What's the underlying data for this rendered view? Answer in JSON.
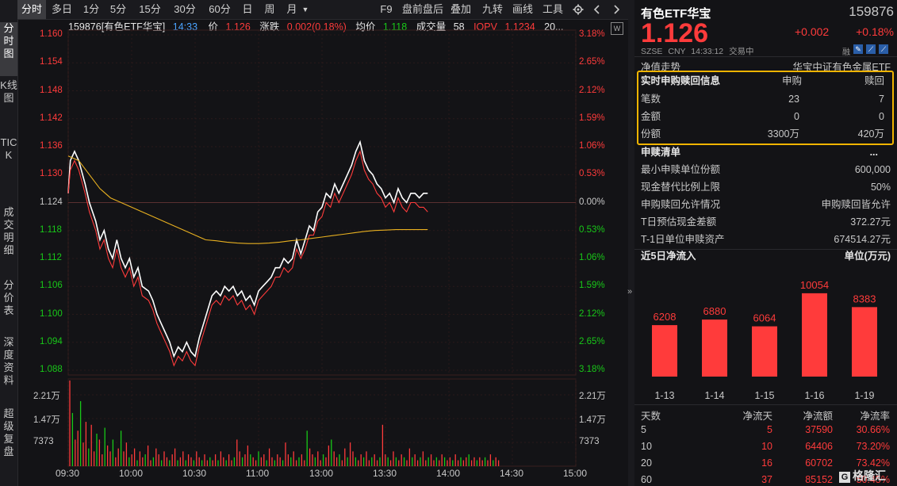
{
  "left_nav": [
    "分时图",
    "K线图",
    "TICK",
    "成交明细",
    "分价表",
    "深度资料",
    "超级复盘"
  ],
  "toolbar": {
    "periods": [
      "分时",
      "多日",
      "1分",
      "5分",
      "15分",
      "30分",
      "60分",
      "日",
      "周",
      "月"
    ],
    "month_arrow": "▼",
    "tools": [
      "F9",
      "盘前盘后",
      "叠加",
      "九转",
      "画线",
      "工具"
    ],
    "settings_icon": "gear-icon",
    "prev_icon": "chevron-left-icon",
    "next_icon": "chevron-right-icon"
  },
  "info_bar": {
    "code_name": "159876[有色ETF华宝]",
    "time": "14:33",
    "price_label": "价",
    "price": "1.126",
    "change_label": "涨跌",
    "change": "0.002(0.18%)",
    "avg_label": "均价",
    "avg": "1.118",
    "vol_label": "成交量",
    "vol": "58",
    "iopv_label": "IOPV",
    "iopv": "1.1234",
    "extra": "20..."
  },
  "chart_data": {
    "type": "line",
    "title": "",
    "price_axis": {
      "ticks": [
        "1.160",
        "1.154",
        "1.148",
        "1.142",
        "1.136",
        "1.130",
        "1.124",
        "1.118",
        "1.112",
        "1.106",
        "1.100",
        "1.094",
        "1.088"
      ],
      "pct_ticks": [
        "3.18%",
        "2.65%",
        "2.12%",
        "1.59%",
        "1.06%",
        "0.53%",
        "0.00%",
        "0.53%",
        "1.06%",
        "1.59%",
        "2.12%",
        "2.65%",
        "3.18%"
      ],
      "ylim": [
        1.088,
        1.16
      ],
      "prev_close": 1.124
    },
    "volume_axis": {
      "ticks": [
        "2.21万",
        "1.47万",
        "7373"
      ],
      "ylim": [
        0,
        29500
      ]
    },
    "x_ticks": [
      "09:30",
      "10:00",
      "10:30",
      "11:00",
      "13:00",
      "13:30",
      "14:00",
      "14:30",
      "15:00"
    ],
    "series": [
      {
        "color": "#ffffff",
        "values": [
          [
            0,
            1.126
          ],
          [
            1,
            1.133
          ],
          [
            3,
            1.135
          ],
          [
            5,
            1.133
          ],
          [
            8,
            1.128
          ],
          [
            10,
            1.124
          ],
          [
            13,
            1.12
          ],
          [
            15,
            1.116
          ],
          [
            17,
            1.118
          ],
          [
            19,
            1.114
          ],
          [
            21,
            1.112
          ],
          [
            23,
            1.116
          ],
          [
            25,
            1.112
          ],
          [
            27,
            1.11
          ],
          [
            29,
            1.112
          ],
          [
            31,
            1.108
          ],
          [
            33,
            1.11
          ],
          [
            35,
            1.106
          ],
          [
            38,
            1.105
          ],
          [
            40,
            1.103
          ],
          [
            42,
            1.1
          ],
          [
            44,
            1.098
          ],
          [
            46,
            1.096
          ],
          [
            48,
            1.094
          ],
          [
            50,
            1.091
          ],
          [
            52,
            1.093
          ],
          [
            54,
            1.092
          ],
          [
            56,
            1.094
          ],
          [
            58,
            1.092
          ],
          [
            60,
            1.091
          ],
          [
            62,
            1.095
          ],
          [
            64,
            1.098
          ],
          [
            66,
            1.101
          ],
          [
            68,
            1.104
          ],
          [
            70,
            1.105
          ],
          [
            72,
            1.104
          ],
          [
            74,
            1.106
          ],
          [
            76,
            1.105
          ],
          [
            78,
            1.106
          ],
          [
            80,
            1.104
          ],
          [
            82,
            1.105
          ],
          [
            84,
            1.103
          ],
          [
            86,
            1.104
          ],
          [
            88,
            1.102
          ],
          [
            90,
            1.105
          ],
          [
            92,
            1.106
          ],
          [
            94,
            1.107
          ],
          [
            96,
            1.108
          ],
          [
            98,
            1.11
          ],
          [
            100,
            1.11
          ],
          [
            102,
            1.112
          ],
          [
            104,
            1.111
          ],
          [
            106,
            1.112
          ],
          [
            108,
            1.116
          ],
          [
            110,
            1.113
          ],
          [
            112,
            1.116
          ],
          [
            114,
            1.119
          ],
          [
            116,
            1.118
          ],
          [
            118,
            1.122
          ],
          [
            120,
            1.123
          ],
          [
            122,
            1.126
          ],
          [
            124,
            1.125
          ],
          [
            126,
            1.128
          ],
          [
            128,
            1.126
          ],
          [
            130,
            1.128
          ],
          [
            132,
            1.13
          ],
          [
            134,
            1.132
          ],
          [
            136,
            1.135
          ],
          [
            138,
            1.137
          ],
          [
            140,
            1.133
          ],
          [
            142,
            1.131
          ],
          [
            144,
            1.13
          ],
          [
            146,
            1.128
          ],
          [
            148,
            1.127
          ],
          [
            150,
            1.125
          ],
          [
            152,
            1.126
          ],
          [
            154,
            1.124
          ],
          [
            156,
            1.127
          ],
          [
            158,
            1.125
          ],
          [
            160,
            1.124
          ],
          [
            162,
            1.126
          ],
          [
            164,
            1.126
          ],
          [
            166,
            1.125
          ],
          [
            168,
            1.126
          ],
          [
            170,
            1.126
          ]
        ]
      },
      {
        "color": "#ff3b3b",
        "values": [
          [
            0,
            1.126
          ],
          [
            1,
            1.131
          ],
          [
            3,
            1.133
          ],
          [
            5,
            1.131
          ],
          [
            8,
            1.126
          ],
          [
            10,
            1.122
          ],
          [
            13,
            1.118
          ],
          [
            15,
            1.114
          ],
          [
            17,
            1.116
          ],
          [
            19,
            1.112
          ],
          [
            21,
            1.11
          ],
          [
            23,
            1.114
          ],
          [
            25,
            1.11
          ],
          [
            27,
            1.108
          ],
          [
            29,
            1.11
          ],
          [
            31,
            1.106
          ],
          [
            33,
            1.108
          ],
          [
            35,
            1.104
          ],
          [
            38,
            1.103
          ],
          [
            40,
            1.101
          ],
          [
            42,
            1.098
          ],
          [
            44,
            1.096
          ],
          [
            46,
            1.094
          ],
          [
            48,
            1.092
          ],
          [
            50,
            1.089
          ],
          [
            52,
            1.091
          ],
          [
            54,
            1.09
          ],
          [
            56,
            1.092
          ],
          [
            58,
            1.09
          ],
          [
            60,
            1.089
          ],
          [
            62,
            1.093
          ],
          [
            64,
            1.096
          ],
          [
            66,
            1.099
          ],
          [
            68,
            1.102
          ],
          [
            70,
            1.103
          ],
          [
            72,
            1.102
          ],
          [
            74,
            1.104
          ],
          [
            76,
            1.103
          ],
          [
            78,
            1.104
          ],
          [
            80,
            1.102
          ],
          [
            82,
            1.103
          ],
          [
            84,
            1.101
          ],
          [
            86,
            1.102
          ],
          [
            88,
            1.1
          ],
          [
            90,
            1.103
          ],
          [
            92,
            1.104
          ],
          [
            94,
            1.105
          ],
          [
            96,
            1.106
          ],
          [
            98,
            1.108
          ],
          [
            100,
            1.108
          ],
          [
            102,
            1.11
          ],
          [
            104,
            1.109
          ],
          [
            106,
            1.11
          ],
          [
            108,
            1.114
          ],
          [
            110,
            1.112
          ],
          [
            112,
            1.114
          ],
          [
            114,
            1.117
          ],
          [
            116,
            1.117
          ],
          [
            118,
            1.12
          ],
          [
            120,
            1.121
          ],
          [
            122,
            1.124
          ],
          [
            124,
            1.123
          ],
          [
            126,
            1.126
          ],
          [
            128,
            1.124
          ],
          [
            130,
            1.126
          ],
          [
            132,
            1.128
          ],
          [
            134,
            1.13
          ],
          [
            136,
            1.133
          ],
          [
            138,
            1.135
          ],
          [
            140,
            1.131
          ],
          [
            142,
            1.129
          ],
          [
            144,
            1.128
          ],
          [
            146,
            1.126
          ],
          [
            148,
            1.125
          ],
          [
            150,
            1.123
          ],
          [
            152,
            1.124
          ],
          [
            154,
            1.122
          ],
          [
            156,
            1.125
          ],
          [
            158,
            1.123
          ],
          [
            160,
            1.122
          ],
          [
            162,
            1.124
          ],
          [
            164,
            1.124
          ],
          [
            166,
            1.123
          ],
          [
            168,
            1.123
          ],
          [
            170,
            1.122
          ]
        ]
      },
      {
        "color": "#e8b020",
        "values": [
          [
            0,
            1.134
          ],
          [
            5,
            1.133
          ],
          [
            10,
            1.13
          ],
          [
            15,
            1.127
          ],
          [
            20,
            1.125
          ],
          [
            25,
            1.124
          ],
          [
            30,
            1.123
          ],
          [
            35,
            1.122
          ],
          [
            40,
            1.121
          ],
          [
            45,
            1.12
          ],
          [
            50,
            1.119
          ],
          [
            55,
            1.118
          ],
          [
            60,
            1.117
          ],
          [
            65,
            1.116
          ],
          [
            70,
            1.1158
          ],
          [
            75,
            1.1155
          ],
          [
            80,
            1.1153
          ],
          [
            85,
            1.1152
          ],
          [
            90,
            1.1152
          ],
          [
            95,
            1.1153
          ],
          [
            100,
            1.1155
          ],
          [
            105,
            1.1158
          ],
          [
            110,
            1.116
          ],
          [
            115,
            1.1163
          ],
          [
            120,
            1.1166
          ],
          [
            125,
            1.1169
          ],
          [
            130,
            1.1172
          ],
          [
            135,
            1.1175
          ],
          [
            140,
            1.1178
          ],
          [
            145,
            1.118
          ],
          [
            150,
            1.1181
          ],
          [
            155,
            1.1182
          ],
          [
            160,
            1.1182
          ],
          [
            165,
            1.1182
          ],
          [
            170,
            1.1182
          ]
        ]
      }
    ],
    "volume_values": [
      29000,
      18000,
      9000,
      12000,
      22000,
      8000,
      15000,
      6000,
      14000,
      5000,
      11000,
      9000,
      4000,
      13000,
      7000,
      5000,
      9000,
      3000,
      6000,
      12000,
      5000,
      8000,
      3000,
      4000,
      6000,
      2000,
      5000,
      3000,
      4000,
      7000,
      2000,
      3000,
      6000,
      4000,
      2000,
      5000,
      3000,
      2000,
      4000,
      6000,
      2000,
      3000,
      5000,
      2000,
      4000,
      3000,
      2000,
      5000,
      3000,
      2000,
      4000,
      2000,
      3000,
      2000,
      4000,
      2000,
      5000,
      3000,
      2000,
      4000,
      2000,
      3000,
      9000,
      5000,
      3000,
      4000,
      7000,
      4000,
      3000,
      2000,
      5000,
      3000,
      4000,
      2000,
      6000,
      3000,
      2000,
      4000,
      3000,
      2000,
      8000,
      4000,
      3000,
      5000,
      2000,
      3000,
      4000,
      2000,
      12000,
      6000,
      4000,
      3000,
      5000,
      2000,
      4000,
      3000,
      7000,
      9000,
      5000,
      3000,
      4000,
      2000,
      6000,
      3000,
      8000,
      5000,
      3000,
      2000,
      4000,
      3000,
      5000,
      2000,
      3000,
      4000,
      2000,
      3000,
      14000,
      4000,
      3000,
      2000,
      5000,
      3000,
      2000,
      4000,
      3000,
      2000,
      6000,
      3000,
      4000,
      2000,
      3000,
      5000,
      2000,
      3000,
      4000,
      2000,
      3000,
      2000,
      4000,
      3000,
      2000,
      3000,
      2000,
      4000,
      2000,
      3000,
      2000,
      3000,
      4000,
      2000,
      3000,
      2000,
      3000,
      2000,
      3000,
      2000,
      4000,
      2000,
      3000,
      2000
    ]
  },
  "right_panel": {
    "name": "有色ETF华宝",
    "code": "159876",
    "price": "1.126",
    "change": "+0.002",
    "change_pct": "+0.18%",
    "exchange": "SZSE",
    "currency": "CNY",
    "time": "14:33:12",
    "status": "交易中",
    "rong": "融",
    "nav_trend_label": "净值走势",
    "tracking": "华宝中证有色金属ETF",
    "realtime_box": {
      "title": "实时申购赎回信息",
      "col1": "申购",
      "col2": "赎回",
      "rows": [
        {
          "label": "笔数",
          "sub": "23",
          "red": "7"
        },
        {
          "label": "金额",
          "sub": "0",
          "red": "0"
        },
        {
          "label": "份额",
          "sub": "3300万",
          "red": "420万"
        }
      ]
    },
    "list_title": "申赎清单",
    "list_more": "...",
    "list_rows": [
      {
        "label": "最小申赎单位份额",
        "value": "600,000"
      },
      {
        "label": "现金替代比例上限",
        "value": "50%"
      },
      {
        "label": "申购赎回允许情况",
        "value": "申购赎回皆允许"
      },
      {
        "label": "T日预估现金差额",
        "value": "372.27元"
      },
      {
        "label": "T-1日单位申赎资产",
        "value": "674514.27元"
      }
    ],
    "inflow_title": "近5日净流入",
    "inflow_unit": "单位(万元)",
    "inflow_chart": {
      "categories": [
        "1-13",
        "1-14",
        "1-15",
        "1-16",
        "1-19"
      ],
      "values": [
        6208,
        6880,
        6064,
        10054,
        8383
      ]
    },
    "table": {
      "headers": [
        "天数",
        "净流天",
        "净流额",
        "净流率"
      ],
      "rows": [
        [
          "5",
          "5",
          "37590",
          "30.66%"
        ],
        [
          "10",
          "10",
          "64406",
          "73.20%"
        ],
        [
          "20",
          "16",
          "60702",
          "73.42%"
        ],
        [
          "60",
          "37",
          "85152",
          "50.45%"
        ]
      ]
    },
    "watermark": "格隆汇"
  }
}
